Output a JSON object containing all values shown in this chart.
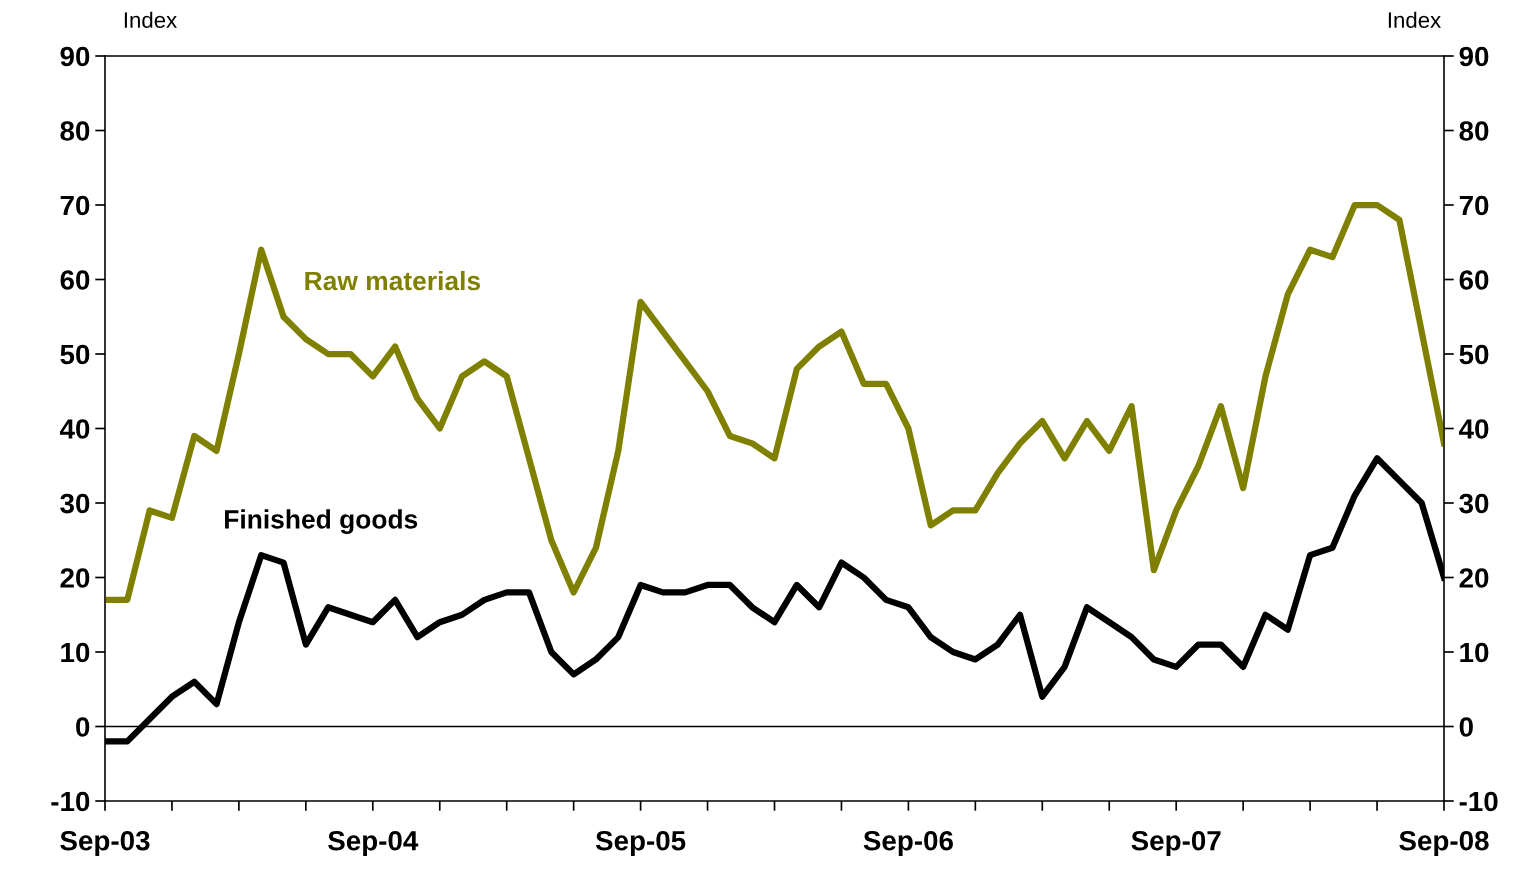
{
  "chart_data": {
    "type": "line",
    "x": [
      "2003-09",
      "2003-10",
      "2003-11",
      "2003-12",
      "2004-01",
      "2004-02",
      "2004-03",
      "2004-04",
      "2004-05",
      "2004-06",
      "2004-07",
      "2004-08",
      "2004-09",
      "2004-10",
      "2004-11",
      "2004-12",
      "2005-01",
      "2005-02",
      "2005-03",
      "2005-04",
      "2005-05",
      "2005-06",
      "2005-07",
      "2005-08",
      "2005-09",
      "2005-10",
      "2005-11",
      "2005-12",
      "2006-01",
      "2006-02",
      "2006-03",
      "2006-04",
      "2006-05",
      "2006-06",
      "2006-07",
      "2006-08",
      "2006-09",
      "2006-10",
      "2006-11",
      "2006-12",
      "2007-01",
      "2007-02",
      "2007-03",
      "2007-04",
      "2007-05",
      "2007-06",
      "2007-07",
      "2007-08",
      "2007-09",
      "2007-10",
      "2007-11",
      "2007-12",
      "2008-01",
      "2008-02",
      "2008-03",
      "2008-04",
      "2008-05",
      "2008-06",
      "2008-07",
      "2008-08",
      "2008-09"
    ],
    "series": [
      {
        "name": "Raw materials",
        "color": "#808000",
        "values": [
          17,
          17,
          29,
          28,
          39,
          37,
          50,
          64,
          55,
          52,
          50,
          50,
          47,
          51,
          44,
          40,
          47,
          49,
          47,
          36,
          25,
          18,
          24,
          37,
          57,
          53,
          49,
          45,
          39,
          38,
          36,
          48,
          51,
          53,
          46,
          46,
          40,
          27,
          29,
          29,
          34,
          38,
          41,
          36,
          41,
          37,
          43,
          21,
          29,
          35,
          43,
          32,
          47,
          58,
          64,
          63,
          70,
          70,
          68,
          53,
          38
        ]
      },
      {
        "name": "Finished goods",
        "color": "#000000",
        "values": [
          -2,
          -2,
          1,
          4,
          6,
          3,
          14,
          23,
          22,
          11,
          16,
          15,
          14,
          17,
          12,
          14,
          15,
          17,
          18,
          18,
          10,
          7,
          9,
          12,
          19,
          18,
          18,
          19,
          19,
          16,
          14,
          19,
          16,
          22,
          20,
          17,
          16,
          12,
          10,
          9,
          11,
          15,
          4,
          8,
          16,
          14,
          12,
          9,
          8,
          11,
          11,
          8,
          15,
          13,
          23,
          24,
          31,
          36,
          33,
          30,
          20
        ]
      }
    ],
    "ylabel": "Index",
    "y2label": "Index",
    "ylim": [
      -10,
      90
    ],
    "yticks": [
      -10,
      0,
      10,
      20,
      30,
      40,
      50,
      60,
      70,
      80,
      90
    ],
    "y2lim": [
      -10,
      90
    ],
    "y2ticks": [
      -10,
      0,
      10,
      20,
      30,
      40,
      50,
      60,
      70,
      80,
      90
    ],
    "xlim": [
      "2003-09",
      "2008-09"
    ],
    "xticks": [
      {
        "value": "2003-09",
        "label": "Sep-03"
      },
      {
        "value": "2003-12",
        "label": null
      },
      {
        "value": "2004-03",
        "label": null
      },
      {
        "value": "2004-06",
        "label": null
      },
      {
        "value": "2004-09",
        "label": "Sep-04"
      },
      {
        "value": "2004-12",
        "label": null
      },
      {
        "value": "2005-03",
        "label": null
      },
      {
        "value": "2005-06",
        "label": null
      },
      {
        "value": "2005-09",
        "label": "Sep-05"
      },
      {
        "value": "2005-12",
        "label": null
      },
      {
        "value": "2006-03",
        "label": null
      },
      {
        "value": "2006-06",
        "label": null
      },
      {
        "value": "2006-09",
        "label": "Sep-06"
      },
      {
        "value": "2006-12",
        "label": null
      },
      {
        "value": "2007-03",
        "label": null
      },
      {
        "value": "2007-06",
        "label": null
      },
      {
        "value": "2007-09",
        "label": "Sep-07"
      },
      {
        "value": "2007-12",
        "label": null
      },
      {
        "value": "2008-03",
        "label": null
      },
      {
        "value": "2008-06",
        "label": null
      },
      {
        "value": "2008-09",
        "label": "Sep-08"
      }
    ],
    "ref_lines": [
      {
        "axis": "y",
        "value": 0,
        "color": "#000000",
        "line_style": "solid"
      }
    ],
    "grid": false,
    "legend": false,
    "marker": "none",
    "line_style": "solid"
  }
}
